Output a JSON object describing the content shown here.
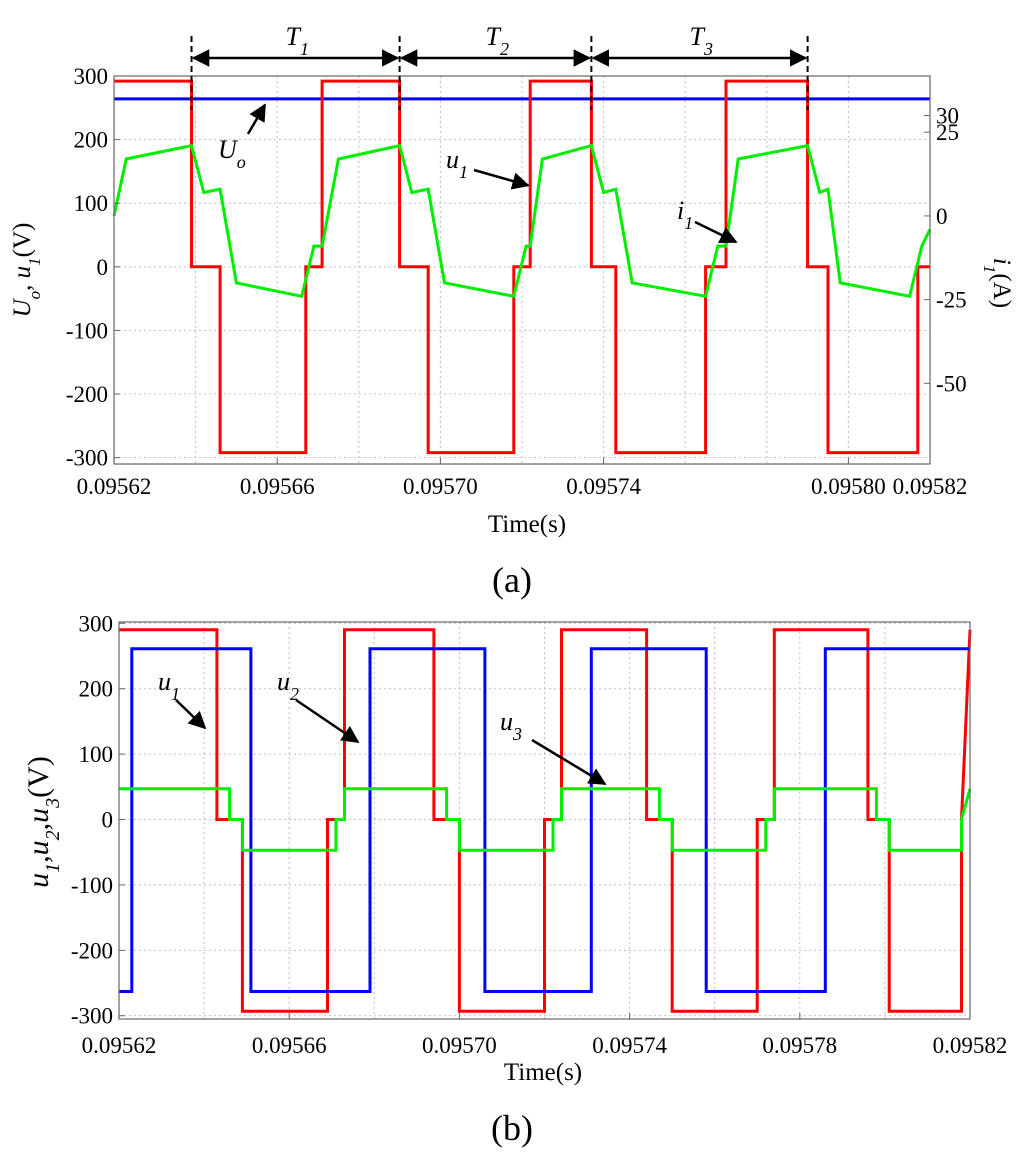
{
  "chart_data": [
    {
      "type": "line",
      "panel_label": "(a)",
      "xlabel": "Time(s)",
      "ylabel_left": {
        "parts": [
          "U",
          "o",
          ", ",
          "u",
          "1",
          "(V)"
        ]
      },
      "ylabel_right": {
        "parts": [
          "i",
          "1",
          "(A)"
        ]
      },
      "xlim": [
        0.09562,
        0.09582
      ],
      "ylim_left": [
        -310,
        300
      ],
      "ylim_right": [
        -74.1,
        41.8
      ],
      "xticks": [
        0.09562,
        0.09566,
        0.0957,
        0.09574,
        0.0958,
        0.09582
      ],
      "xtick_labels": [
        "0.09562",
        "0.09566",
        "0.09570",
        "0.09574",
        "0.09580",
        "0.09582"
      ],
      "yticks_left": [
        300,
        200,
        100,
        0,
        -100,
        -200,
        -300
      ],
      "ytick_labels_left": [
        "300",
        "200",
        "100",
        "0",
        "-100",
        "-200",
        "-300"
      ],
      "yticks_right": [
        30,
        25,
        0,
        -25,
        -50
      ],
      "ytick_labels_right": [
        "30",
        "25",
        "0",
        "-25",
        "-50"
      ],
      "grid_x": [
        0.09562,
        0.09564,
        0.09566,
        0.09568,
        0.0957,
        0.09572,
        0.09574,
        0.09576,
        0.09578,
        0.0958,
        0.09582
      ],
      "grid_y": [
        300,
        200,
        100,
        0,
        -100,
        -200,
        -300
      ],
      "series": [
        {
          "name": "U_o",
          "color": "#0000ff",
          "axis": "left",
          "x": [
            0.09562,
            0.09582
          ],
          "y": [
            264,
            264
          ]
        },
        {
          "name": "u_1",
          "color": "#ff0000",
          "axis": "left",
          "x": [
            0.09562,
            0.095639,
            0.095639,
            0.095646,
            0.095646,
            0.095667,
            0.095667,
            0.095671,
            0.095671,
            0.09569,
            0.09569,
            0.095697,
            0.095697,
            0.095718,
            0.095718,
            0.095722,
            0.095722,
            0.095737,
            0.095737,
            0.095743,
            0.095743,
            0.095765,
            0.095765,
            0.09577,
            0.09577,
            0.09579,
            0.09579,
            0.095795,
            0.095795,
            0.095817,
            0.095817,
            0.09582
          ],
          "y": [
            292,
            292,
            0,
            0,
            -292,
            -292,
            0,
            0,
            292,
            292,
            0,
            0,
            -292,
            -292,
            0,
            0,
            292,
            292,
            0,
            0,
            -292,
            -292,
            0,
            0,
            292,
            292,
            0,
            0,
            -292,
            -292,
            0,
            0
          ]
        },
        {
          "name": "i_1",
          "color": "#00ee00",
          "axis": "right",
          "x": [
            0.09562,
            0.095623,
            0.095639,
            0.095642,
            0.095646,
            0.09565,
            0.095666,
            0.095669,
            0.095671,
            0.095675,
            0.09569,
            0.095693,
            0.095697,
            0.095701,
            0.095718,
            0.095721,
            0.095722,
            0.095725,
            0.095737,
            0.09574,
            0.095743,
            0.095747,
            0.095765,
            0.095768,
            0.09577,
            0.095773,
            0.09579,
            0.095793,
            0.095795,
            0.095798,
            0.095815,
            0.095818,
            0.09582
          ],
          "y": [
            0,
            17,
            21,
            7,
            8,
            -20,
            -24,
            -9,
            -9,
            17,
            21,
            7,
            8,
            -20,
            -24,
            -9,
            -9,
            17,
            21,
            7,
            8,
            -20,
            -24,
            -9,
            -9,
            17,
            21,
            7,
            8,
            -20,
            -24,
            -9,
            -4
          ]
        }
      ],
      "period_markers": [
        {
          "label": "T",
          "sub": "1",
          "x0": 0.095639,
          "x1": 0.09569
        },
        {
          "label": "T",
          "sub": "2",
          "x0": 0.09569,
          "x1": 0.095737
        },
        {
          "label": "T",
          "sub": "3",
          "x0": 0.095737,
          "x1": 0.09579
        }
      ],
      "annotations": [
        {
          "text": "U",
          "sub": "o",
          "target": [
            0.095657,
            264
          ]
        },
        {
          "text": "u",
          "sub": "1",
          "target": [
            0.095722,
            172
          ]
        },
        {
          "text": "i",
          "sub": "1",
          "target": [
            0.095776,
            43
          ]
        }
      ]
    },
    {
      "type": "line",
      "panel_label": "(b)",
      "xlabel": "Time(s)",
      "ylabel": {
        "parts": [
          "u",
          "1",
          ",",
          "u",
          "2",
          ",",
          "u",
          "3",
          "(V)"
        ]
      },
      "xlim": [
        0.09562,
        0.09582
      ],
      "ylim": [
        -305,
        302
      ],
      "xticks": [
        0.09562,
        0.09566,
        0.0957,
        0.09574,
        0.09578,
        0.09582
      ],
      "xtick_labels": [
        "0.09562",
        "0.09566",
        "0.09570",
        "0.09574",
        "0.09578",
        "0.09582"
      ],
      "yticks": [
        300,
        200,
        100,
        0,
        -100,
        -200,
        -300
      ],
      "ytick_labels": [
        "300",
        "200",
        "100",
        "0",
        "-100",
        "-200",
        "-300"
      ],
      "grid_x": [
        0.09562,
        0.09564,
        0.09566,
        0.09568,
        0.0957,
        0.09572,
        0.09574,
        0.09576,
        0.09578,
        0.0958,
        0.09582
      ],
      "grid_y": [
        300,
        200,
        100,
        0,
        -100,
        -200,
        -300
      ],
      "series": [
        {
          "name": "u_1",
          "color": "#ff0000",
          "x": [
            0.09562,
            0.095643,
            0.095643,
            0.095649,
            0.095649,
            0.095669,
            0.095669,
            0.095673,
            0.095673,
            0.095694,
            0.095694,
            0.0957,
            0.0957,
            0.09572,
            0.09572,
            0.095724,
            0.095724,
            0.095744,
            0.095744,
            0.09575,
            0.09575,
            0.09577,
            0.09577,
            0.095774,
            0.095774,
            0.095796,
            0.095796,
            0.095801,
            0.095801,
            0.095818,
            0.095818,
            0.09582
          ],
          "y": [
            290,
            290,
            0,
            0,
            -293,
            -293,
            0,
            0,
            290,
            290,
            0,
            0,
            -293,
            -293,
            0,
            0,
            290,
            290,
            0,
            0,
            -293,
            -293,
            0,
            0,
            290,
            290,
            0,
            0,
            -293,
            -293,
            0,
            290
          ]
        },
        {
          "name": "u_2",
          "color": "#0000ff",
          "x": [
            0.09562,
            0.095623,
            0.095623,
            0.095651,
            0.095651,
            0.095679,
            0.095679,
            0.095706,
            0.095706,
            0.095731,
            0.095731,
            0.095758,
            0.095758,
            0.095786,
            0.095786,
            0.09582
          ],
          "y": [
            -263,
            -263,
            261,
            261,
            -263,
            -263,
            261,
            261,
            -263,
            -263,
            261,
            261,
            -263,
            -263,
            261,
            261
          ]
        },
        {
          "name": "u_3",
          "color": "#00ee00",
          "x": [
            0.09562,
            0.095646,
            0.095646,
            0.095649,
            0.095649,
            0.095671,
            0.095671,
            0.095673,
            0.095673,
            0.095697,
            0.095697,
            0.0957,
            0.0957,
            0.095722,
            0.095722,
            0.095724,
            0.095724,
            0.095747,
            0.095747,
            0.09575,
            0.09575,
            0.095772,
            0.095772,
            0.095774,
            0.095774,
            0.095798,
            0.095798,
            0.095801,
            0.095801,
            0.095818,
            0.095818,
            0.09582
          ],
          "y": [
            47,
            47,
            0,
            0,
            -47,
            -47,
            0,
            0,
            47,
            47,
            0,
            0,
            -47,
            -47,
            0,
            0,
            47,
            47,
            0,
            0,
            -47,
            -47,
            0,
            0,
            47,
            47,
            0,
            0,
            -47,
            -47,
            0,
            47
          ]
        }
      ],
      "annotations": [
        {
          "text": "u",
          "sub": "1",
          "target": [
            0.095639,
            77
          ]
        },
        {
          "text": "u",
          "sub": "2",
          "target": [
            0.095661,
            77
          ]
        },
        {
          "text": "u",
          "sub": "3",
          "target": [
            0.095711,
            47
          ]
        }
      ]
    }
  ]
}
